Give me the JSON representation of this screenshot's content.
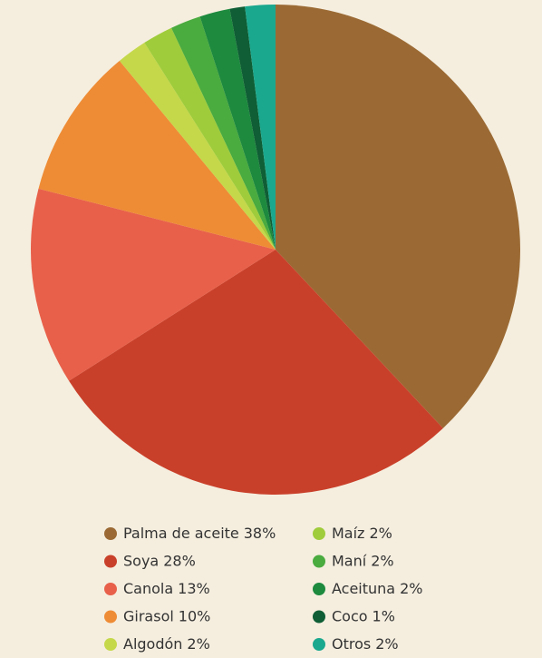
{
  "chart_data": {
    "type": "pie",
    "categories": [
      "Palma de aceite",
      "Soya",
      "Canola",
      "Girasol",
      "Algodón",
      "Maíz",
      "Maní",
      "Aceituna",
      "Coco",
      "Otros"
    ],
    "values": [
      38,
      28,
      13,
      10,
      2,
      2,
      2,
      2,
      1,
      2
    ],
    "value_labels": [
      "38%",
      "28%",
      "13%",
      "10%",
      "2%",
      "2%",
      "2%",
      "2%",
      "1%",
      "2%"
    ],
    "colors": [
      "#9b6a34",
      "#c9402a",
      "#e8604a",
      "#ee8c35",
      "#c5d84a",
      "#9fcc3b",
      "#4aab3f",
      "#1d8a3e",
      "#0f5e35",
      "#1aa88e"
    ]
  }
}
